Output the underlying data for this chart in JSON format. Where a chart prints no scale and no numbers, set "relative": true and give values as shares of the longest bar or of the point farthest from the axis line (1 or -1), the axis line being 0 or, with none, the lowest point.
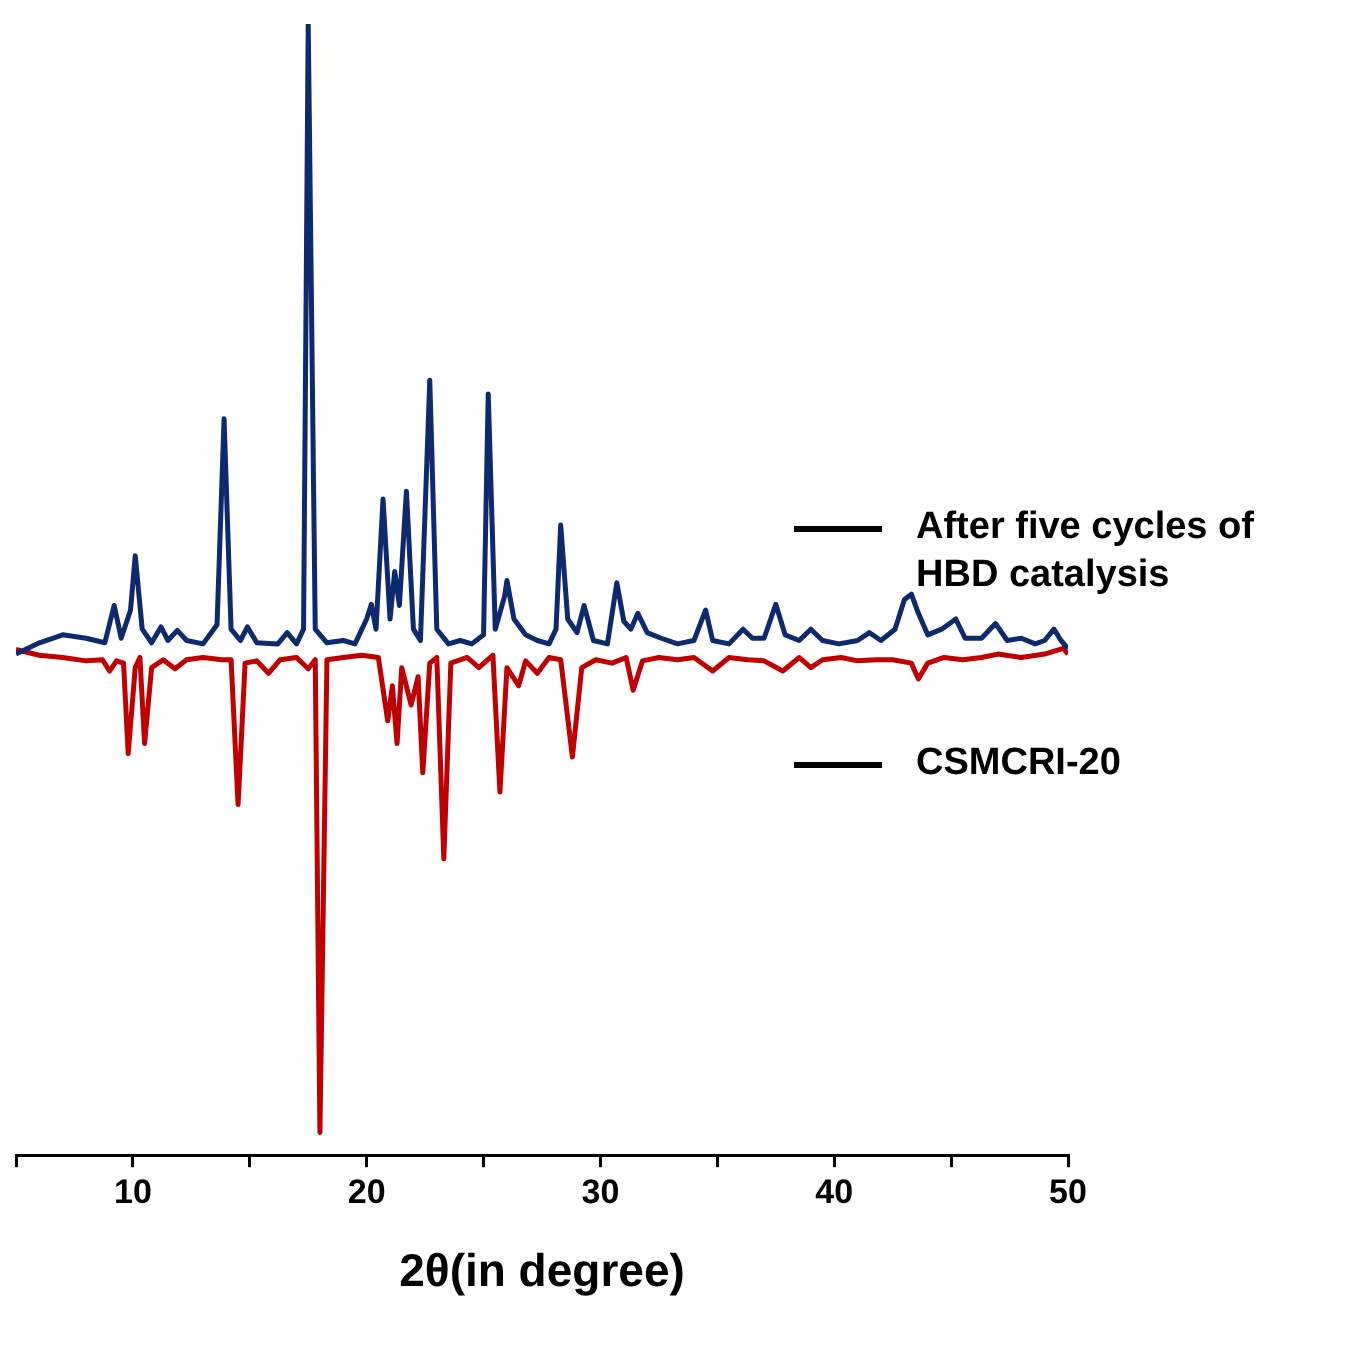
{
  "chart_data": {
    "type": "line",
    "relative": true,
    "xlabel": "2θ(in degree)",
    "xlim": [
      5,
      50
    ],
    "xticks": [
      {
        "value": 5,
        "label": null
      },
      10,
      {
        "value": 15,
        "label": null
      },
      20,
      {
        "value": 25,
        "label": null
      },
      30,
      {
        "value": 35,
        "label": null
      },
      40,
      {
        "value": 45,
        "label": null
      },
      50
    ],
    "grid": false,
    "legend": "right",
    "marker": "none",
    "line_style": "solid",
    "series": [
      {
        "name": "After five cycles of HBD catalysis",
        "color": "#0d2a6e",
        "x": [
          5.0,
          6.0,
          7.0,
          8.0,
          8.8,
          9.2,
          9.5,
          9.9,
          10.1,
          10.4,
          10.8,
          11.2,
          11.5,
          11.9,
          12.3,
          13.0,
          13.6,
          13.9,
          14.2,
          14.6,
          14.9,
          15.3,
          16.2,
          16.6,
          17.0,
          17.3,
          17.5,
          17.8,
          18.3,
          19.0,
          19.5,
          20.0,
          20.2,
          20.4,
          20.7,
          21.0,
          21.2,
          21.4,
          21.7,
          22.0,
          22.3,
          22.7,
          23.0,
          23.5,
          24.0,
          24.5,
          25.0,
          25.2,
          25.5,
          25.9,
          26.0,
          26.3,
          26.8,
          27.3,
          27.8,
          28.1,
          28.3,
          28.6,
          29.0,
          29.3,
          29.7,
          30.3,
          30.7,
          31.0,
          31.3,
          31.6,
          32.0,
          32.6,
          33.3,
          34.0,
          34.5,
          34.8,
          35.5,
          36.1,
          36.5,
          37.0,
          37.5,
          37.9,
          38.5,
          39.0,
          39.5,
          40.2,
          41.0,
          41.5,
          42.0,
          42.6,
          43.0,
          43.3,
          43.6,
          44.0,
          44.6,
          45.2,
          45.6,
          46.3,
          46.9,
          47.4,
          48.0,
          48.6,
          49.0,
          49.4,
          49.7,
          50.0
        ],
        "values": [
          0.443,
          0.453,
          0.46,
          0.457,
          0.453,
          0.486,
          0.457,
          0.482,
          0.53,
          0.465,
          0.453,
          0.467,
          0.455,
          0.464,
          0.455,
          0.452,
          0.469,
          0.651,
          0.465,
          0.455,
          0.467,
          0.453,
          0.452,
          0.462,
          0.452,
          0.465,
          1,
          0.465,
          0.453,
          0.455,
          0.452,
          0.474,
          0.487,
          0.465,
          0.58,
          0.474,
          0.516,
          0.486,
          0.587,
          0.465,
          0.455,
          0.685,
          0.465,
          0.452,
          0.455,
          0.452,
          0.46,
          0.673,
          0.465,
          0.494,
          0.508,
          0.474,
          0.46,
          0.455,
          0.452,
          0.465,
          0.557,
          0.474,
          0.462,
          0.486,
          0.455,
          0.452,
          0.506,
          0.472,
          0.465,
          0.479,
          0.462,
          0.457,
          0.452,
          0.455,
          0.482,
          0.455,
          0.452,
          0.465,
          0.457,
          0.457,
          0.487,
          0.46,
          0.455,
          0.465,
          0.455,
          0.452,
          0.455,
          0.462,
          0.455,
          0.465,
          0.491,
          0.496,
          0.479,
          0.46,
          0.465,
          0.474,
          0.457,
          0.457,
          0.47,
          0.455,
          0.457,
          0.452,
          0.455,
          0.465,
          0.455,
          0.448
        ]
      },
      {
        "name": "CSMCRI-20",
        "color": "#c00000",
        "x": [
          5.0,
          6.0,
          7.0,
          8.0,
          8.7,
          9.0,
          9.3,
          9.6,
          9.8,
          10.1,
          10.3,
          10.5,
          10.8,
          11.3,
          11.8,
          12.3,
          13.0,
          13.8,
          14.2,
          14.5,
          14.8,
          15.3,
          15.8,
          16.3,
          17.0,
          17.5,
          17.8,
          18.0,
          18.3,
          19.0,
          19.8,
          20.5,
          20.9,
          21.1,
          21.3,
          21.5,
          21.9,
          22.2,
          22.4,
          22.7,
          23.0,
          23.3,
          23.6,
          24.3,
          24.8,
          25.4,
          25.7,
          26.0,
          26.5,
          26.8,
          27.3,
          27.8,
          28.3,
          28.8,
          29.2,
          29.8,
          30.5,
          31.1,
          31.4,
          31.8,
          32.5,
          33.3,
          34.0,
          34.8,
          35.5,
          36.3,
          37.0,
          37.8,
          38.5,
          39.0,
          39.5,
          40.3,
          41.0,
          41.8,
          42.5,
          43.3,
          43.6,
          44.0,
          44.7,
          45.5,
          46.3,
          47.0,
          48.0,
          49.0,
          49.8,
          50.0
        ],
        "values": [
          0.447,
          0.442,
          0.44,
          0.437,
          0.438,
          0.428,
          0.437,
          0.435,
          0.355,
          0.431,
          0.44,
          0.364,
          0.431,
          0.438,
          0.43,
          0.438,
          0.44,
          0.438,
          0.438,
          0.31,
          0.435,
          0.437,
          0.426,
          0.438,
          0.44,
          0.43,
          0.438,
          0.02,
          0.438,
          0.44,
          0.442,
          0.44,
          0.384,
          0.415,
          0.364,
          0.431,
          0.398,
          0.423,
          0.338,
          0.435,
          0.44,
          0.262,
          0.435,
          0.44,
          0.431,
          0.442,
          0.321,
          0.431,
          0.415,
          0.437,
          0.426,
          0.44,
          0.438,
          0.352,
          0.431,
          0.438,
          0.435,
          0.44,
          0.411,
          0.437,
          0.44,
          0.438,
          0.44,
          0.428,
          0.44,
          0.438,
          0.437,
          0.428,
          0.44,
          0.431,
          0.438,
          0.44,
          0.437,
          0.438,
          0.438,
          0.435,
          0.421,
          0.435,
          0.44,
          0.438,
          0.44,
          0.443,
          0.44,
          0.443,
          0.448,
          0.443
        ]
      }
    ]
  }
}
